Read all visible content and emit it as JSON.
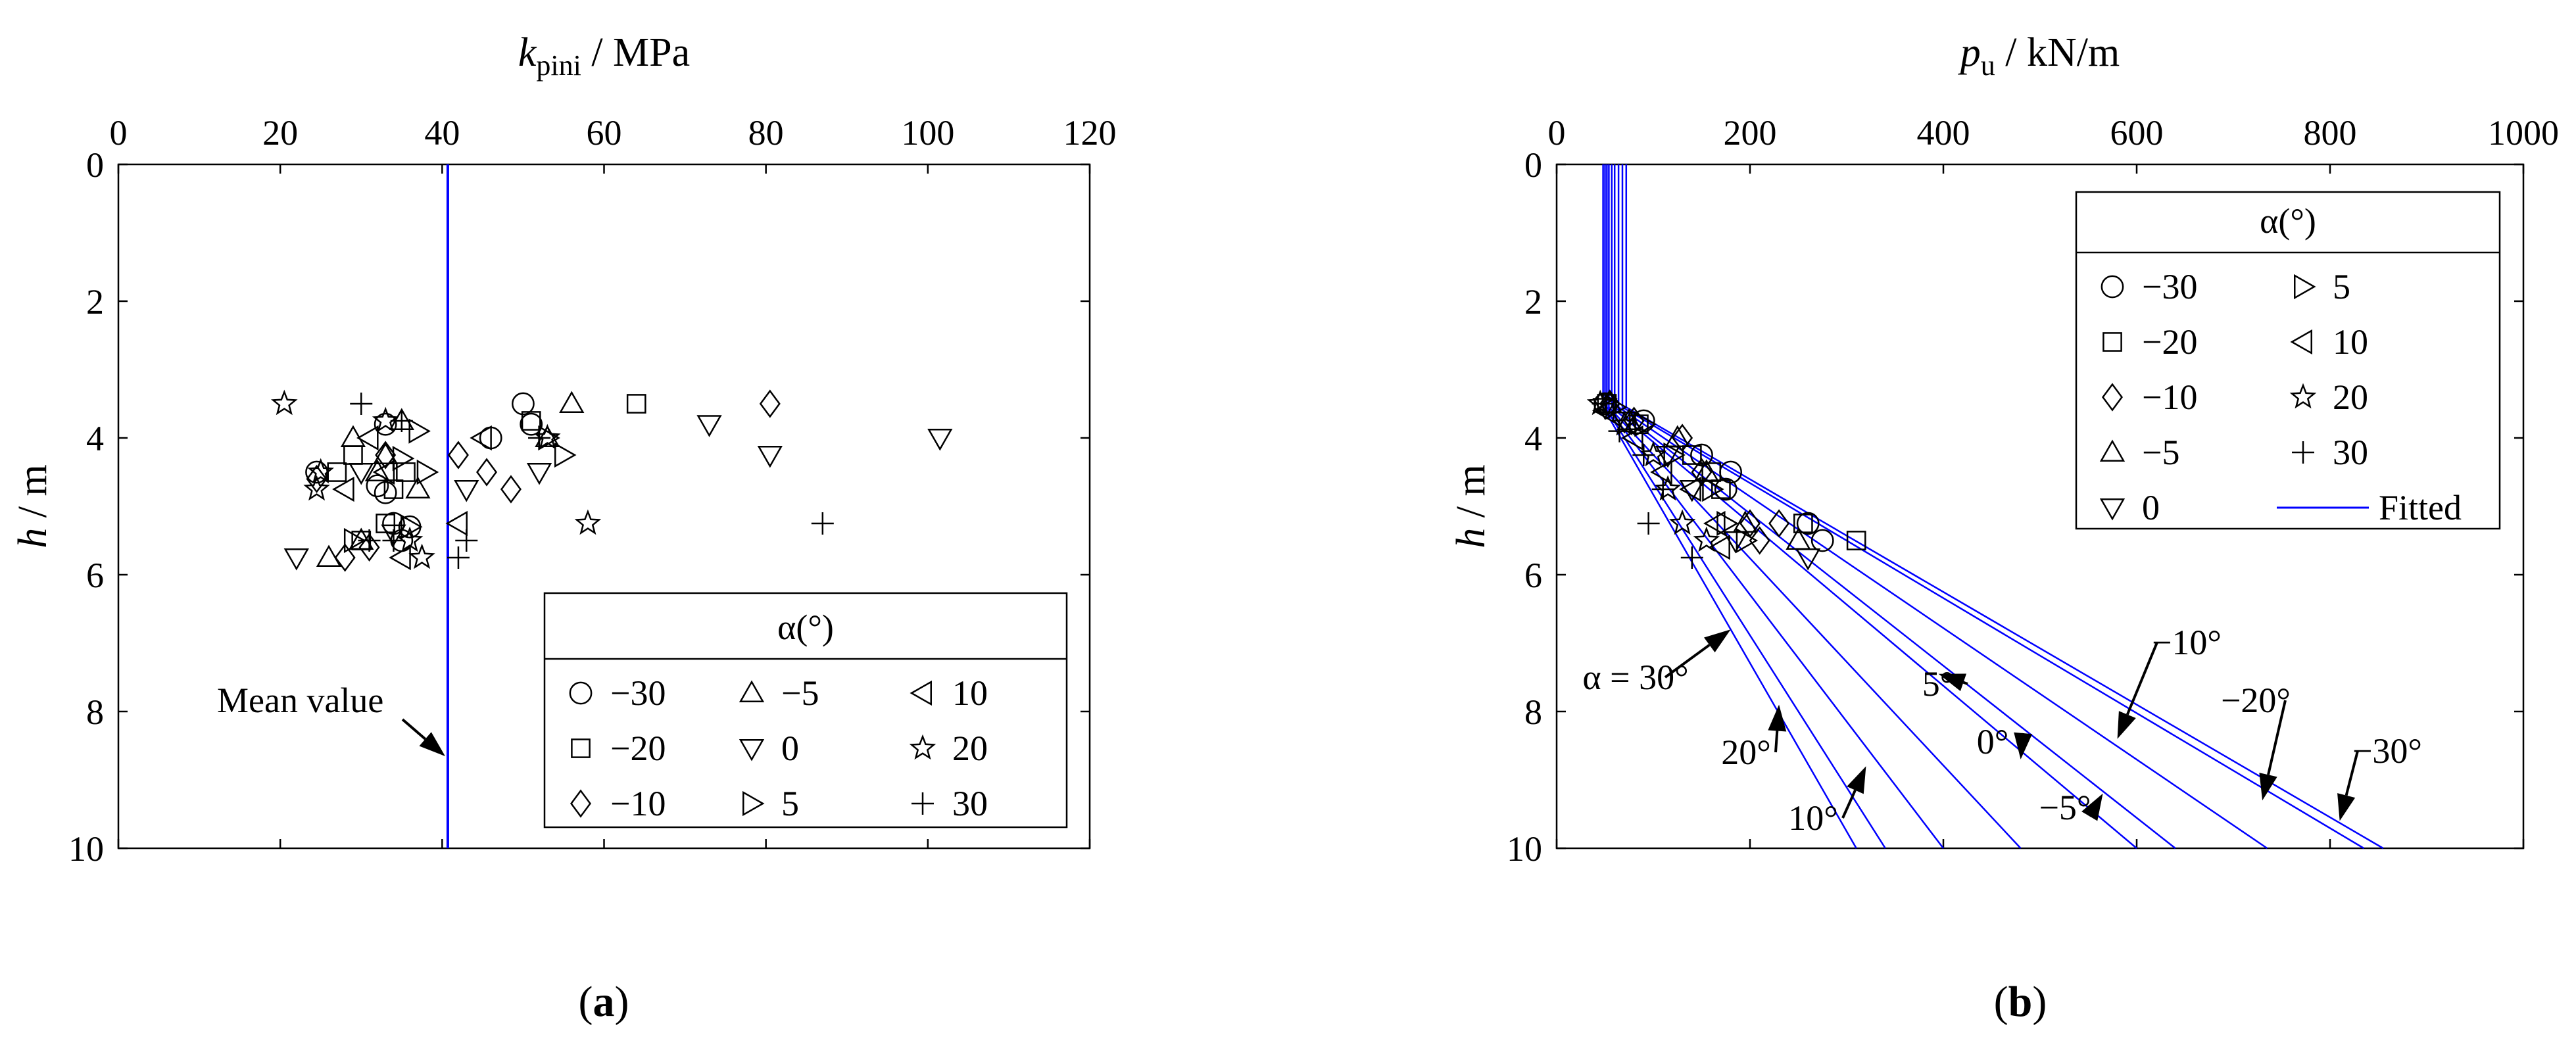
{
  "panel_labels": {
    "a": "a",
    "b": "b"
  },
  "chart_data": [
    {
      "type": "scatter",
      "panel": "a",
      "xlabel": {
        "main": "k",
        "sub": "pini",
        "unit": " / MPa"
      },
      "ylabel": {
        "main": "h",
        "unit": " / m"
      },
      "xlim": [
        0,
        120
      ],
      "ylim": [
        0,
        10
      ],
      "y_reversed": true,
      "x_axis_position": "top",
      "x_ticks": [
        "0",
        "20",
        "40",
        "60",
        "80",
        "100",
        "120"
      ],
      "y_ticks": [
        "0",
        "2",
        "4",
        "6",
        "8",
        "10"
      ],
      "legend": {
        "title": "α(°)",
        "placement": "bottom-right",
        "entries": [
          {
            "label": "−30",
            "marker": "circle"
          },
          {
            "label": "−20",
            "marker": "square"
          },
          {
            "label": "−10",
            "marker": "diamond"
          },
          {
            "label": "−5",
            "marker": "triangle-up"
          },
          {
            "label": "0",
            "marker": "triangle-down"
          },
          {
            "label": "5",
            "marker": "triangle-right"
          },
          {
            "label": "10",
            "marker": "triangle-left"
          },
          {
            "label": "20",
            "marker": "star"
          },
          {
            "label": "30",
            "marker": "plus"
          }
        ]
      },
      "mean_line": {
        "x": 40.7,
        "color": "#0000ff",
        "label": "Mean value"
      },
      "series": [
        {
          "name": "−30",
          "marker": "circle",
          "points": [
            [
              24.5,
              4.5
            ],
            [
              32,
              4.7
            ],
            [
              33,
              4.8
            ],
            [
              34,
              5.25
            ],
            [
              35,
              5.5
            ],
            [
              36,
              5.3
            ],
            [
              46,
              4.0
            ],
            [
              50,
              3.5
            ],
            [
              51,
              3.8
            ],
            [
              33,
              3.8
            ]
          ]
        },
        {
          "name": "−20",
          "marker": "square",
          "points": [
            [
              27,
              4.5
            ],
            [
              29,
              4.25
            ],
            [
              34,
              4.75
            ],
            [
              33,
              5.25
            ],
            [
              35.5,
              4.5
            ],
            [
              64,
              3.5
            ],
            [
              51,
              3.75
            ],
            [
              30,
              5.5
            ]
          ]
        },
        {
          "name": "−10",
          "marker": "diamond",
          "points": [
            [
              24.5,
              4.6
            ],
            [
              33,
              4.25
            ],
            [
              42,
              4.25
            ],
            [
              48.5,
              4.75
            ],
            [
              45.5,
              4.5
            ],
            [
              80.5,
              3.5
            ],
            [
              28,
              5.75
            ],
            [
              31,
              5.6
            ]
          ]
        },
        {
          "name": "−5",
          "marker": "triangle-up",
          "points": [
            [
              29,
              4.0
            ],
            [
              32,
              4.5
            ],
            [
              33,
              4.25
            ],
            [
              35,
              3.75
            ],
            [
              37,
              4.75
            ],
            [
              56,
              3.5
            ],
            [
              53,
              4.0
            ],
            [
              26,
              5.75
            ],
            [
              30,
              5.5
            ]
          ]
        },
        {
          "name": "0",
          "marker": "triangle-down",
          "points": [
            [
              22,
              5.75
            ],
            [
              30,
              4.5
            ],
            [
              34,
              5.4
            ],
            [
              43,
              4.75
            ],
            [
              52,
              4.5
            ],
            [
              73,
              3.8
            ],
            [
              80.5,
              4.25
            ],
            [
              101.5,
              4.0
            ]
          ]
        },
        {
          "name": "5",
          "marker": "triangle-right",
          "points": [
            [
              29,
              5.5
            ],
            [
              35,
              4.3
            ],
            [
              37,
              3.9
            ],
            [
              38,
              4.5
            ],
            [
              53,
              4.0
            ],
            [
              55,
              4.25
            ],
            [
              36,
              5.3
            ]
          ]
        },
        {
          "name": "10",
          "marker": "triangle-left",
          "points": [
            [
              28,
              4.75
            ],
            [
              31,
              4.0
            ],
            [
              33,
              4.5
            ],
            [
              42,
              5.25
            ],
            [
              35,
              5.75
            ],
            [
              45,
              4.0
            ]
          ]
        },
        {
          "name": "20",
          "marker": "star",
          "points": [
            [
              20.5,
              3.5
            ],
            [
              25,
              4.5
            ],
            [
              24.5,
              4.75
            ],
            [
              33,
              3.75
            ],
            [
              36,
              5.5
            ],
            [
              37.5,
              5.75
            ],
            [
              53,
              4.0
            ],
            [
              58,
              5.25
            ]
          ]
        },
        {
          "name": "30",
          "marker": "plus",
          "points": [
            [
              30,
              3.5
            ],
            [
              35,
              3.75
            ],
            [
              31,
              5.5
            ],
            [
              34,
              5.5
            ],
            [
              42,
              5.75
            ],
            [
              43,
              5.5
            ],
            [
              52,
              4.0
            ],
            [
              87,
              5.25
            ]
          ]
        }
      ]
    },
    {
      "type": "scatter",
      "panel": "b",
      "xlabel": {
        "main": "p",
        "sub": "u",
        "unit": " / kN/m"
      },
      "ylabel": {
        "main": "h",
        "unit": " / m"
      },
      "xlim": [
        0,
        1000
      ],
      "ylim": [
        0,
        10
      ],
      "y_reversed": true,
      "x_axis_position": "top",
      "x_ticks": [
        "0",
        "200",
        "400",
        "600",
        "800",
        "1000"
      ],
      "y_ticks": [
        "0",
        "2",
        "4",
        "6",
        "8",
        "10"
      ],
      "legend": {
        "title": "α(°)",
        "placement": "top-right",
        "entries": [
          {
            "label": "−30",
            "marker": "circle"
          },
          {
            "label": "−20",
            "marker": "square"
          },
          {
            "label": "−10",
            "marker": "diamond"
          },
          {
            "label": "−5",
            "marker": "triangle-up"
          },
          {
            "label": "0",
            "marker": "triangle-down"
          },
          {
            "label": "5",
            "marker": "triangle-right"
          },
          {
            "label": "10",
            "marker": "triangle-left"
          },
          {
            "label": "20",
            "marker": "star"
          },
          {
            "label": "30",
            "marker": "plus"
          },
          {
            "label": "Fitted",
            "marker": "line"
          }
        ]
      },
      "fitted_color": "#0000ff",
      "fitted_lines": [
        {
          "alpha": "−30",
          "points": [
            [
              72,
              0
            ],
            [
              72,
              3.55
            ],
            [
              855,
              10
            ]
          ]
        },
        {
          "alpha": "−20",
          "points": [
            [
              68,
              0
            ],
            [
              68,
              3.55
            ],
            [
              835,
              10
            ]
          ]
        },
        {
          "alpha": "−10",
          "points": [
            [
              64,
              0
            ],
            [
              64,
              3.55
            ],
            [
              735,
              10
            ]
          ]
        },
        {
          "alpha": "−5",
          "points": [
            [
              60,
              0
            ],
            [
              60,
              3.55
            ],
            [
              640,
              10
            ]
          ]
        },
        {
          "alpha": "0",
          "points": [
            [
              57,
              0
            ],
            [
              57,
              3.55
            ],
            [
              600,
              10
            ]
          ]
        },
        {
          "alpha": "5",
          "points": [
            [
              54,
              0
            ],
            [
              54,
              3.55
            ],
            [
              480,
              10
            ]
          ]
        },
        {
          "alpha": "10",
          "points": [
            [
              52,
              0
            ],
            [
              52,
              3.55
            ],
            [
              400,
              10
            ]
          ]
        },
        {
          "alpha": "20",
          "points": [
            [
              50,
              0
            ],
            [
              50,
              3.55
            ],
            [
              340,
              10
            ]
          ]
        },
        {
          "alpha": "30",
          "points": [
            [
              48,
              0
            ],
            [
              48,
              3.55
            ],
            [
              310,
              10
            ]
          ]
        }
      ],
      "series": [
        {
          "name": "−30",
          "marker": "circle",
          "points": [
            [
              50,
              3.5
            ],
            [
              90,
              3.75
            ],
            [
              150,
              4.25
            ],
            [
              180,
              4.5
            ],
            [
              175,
              4.75
            ],
            [
              260,
              5.25
            ],
            [
              275,
              5.5
            ]
          ]
        },
        {
          "name": "−20",
          "marker": "square",
          "points": [
            [
              52,
              3.5
            ],
            [
              85,
              3.8
            ],
            [
              140,
              4.25
            ],
            [
              160,
              4.5
            ],
            [
              170,
              4.75
            ],
            [
              255,
              5.25
            ],
            [
              310,
              5.5
            ]
          ]
        },
        {
          "name": "−10",
          "marker": "diamond",
          "points": [
            [
              55,
              3.5
            ],
            [
              80,
              3.75
            ],
            [
              130,
              4.0
            ],
            [
              150,
              4.5
            ],
            [
              200,
              5.25
            ],
            [
              230,
              5.25
            ],
            [
              210,
              5.5
            ]
          ]
        },
        {
          "name": "−5",
          "marker": "triangle-up",
          "points": [
            [
              55,
              3.5
            ],
            [
              75,
              3.75
            ],
            [
              125,
              4.0
            ],
            [
              155,
              4.5
            ],
            [
              195,
              5.25
            ],
            [
              250,
              5.5
            ]
          ]
        },
        {
          "name": "0",
          "marker": "triangle-down",
          "points": [
            [
              50,
              3.55
            ],
            [
              70,
              3.75
            ],
            [
              115,
              4.25
            ],
            [
              140,
              4.75
            ],
            [
              185,
              5.5
            ],
            [
              260,
              5.75
            ]
          ]
        },
        {
          "name": "5",
          "marker": "triangle-right",
          "points": [
            [
              60,
              3.55
            ],
            [
              90,
              3.8
            ],
            [
              120,
              4.25
            ],
            [
              160,
              4.75
            ],
            [
              175,
              5.25
            ],
            [
              195,
              5.5
            ]
          ]
        },
        {
          "name": "10",
          "marker": "triangle-left",
          "points": [
            [
              50,
              3.6
            ],
            [
              80,
              4.0
            ],
            [
              110,
              4.5
            ],
            [
              140,
              4.75
            ],
            [
              165,
              5.25
            ],
            [
              170,
              5.6
            ]
          ]
        },
        {
          "name": "20",
          "marker": "star",
          "points": [
            [
              45,
              3.5
            ],
            [
              70,
              3.8
            ],
            [
              100,
              4.25
            ],
            [
              115,
              4.75
            ],
            [
              130,
              5.25
            ],
            [
              155,
              5.5
            ]
          ]
        },
        {
          "name": "30",
          "marker": "plus",
          "points": [
            [
              48,
              3.5
            ],
            [
              65,
              3.9
            ],
            [
              90,
              4.25
            ],
            [
              110,
              4.75
            ],
            [
              95,
              5.25
            ],
            [
              140,
              5.75
            ]
          ]
        }
      ],
      "annotations": [
        {
          "text": "α = 30°",
          "arrow_to": [
            180,
            6.8
          ]
        },
        {
          "text": "20°",
          "arrow_to": [
            230,
            7.9
          ]
        },
        {
          "text": "10°",
          "arrow_to": [
            320,
            8.8
          ]
        },
        {
          "text": "5°",
          "arrow_to": [
            395,
            7.45
          ]
        },
        {
          "text": "0°",
          "arrow_to": [
            480,
            8.7
          ]
        },
        {
          "text": "−5°",
          "arrow_to": [
            565,
            9.2
          ]
        },
        {
          "text": "−10°",
          "arrow_to": [
            580,
            8.4
          ]
        },
        {
          "text": "−20°",
          "arrow_to": [
            730,
            9.3
          ]
        },
        {
          "text": "−30°",
          "arrow_to": [
            810,
            9.6
          ]
        }
      ]
    }
  ]
}
